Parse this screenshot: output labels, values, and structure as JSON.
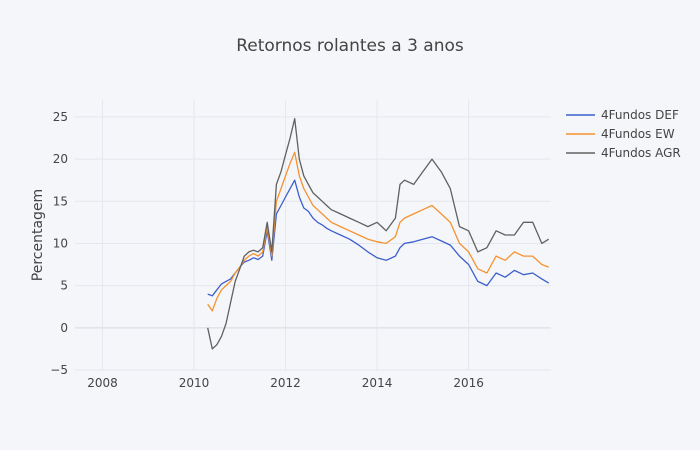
{
  "chart_data": {
    "type": "line",
    "title": "Retornos rolantes a 3 anos",
    "xlabel": "",
    "ylabel": "Percentagem",
    "xlim": [
      2007.4,
      2017.8
    ],
    "ylim": [
      -5,
      27
    ],
    "x_ticks": [
      2008,
      2010,
      2012,
      2014,
      2016
    ],
    "y_ticks": [
      -5,
      0,
      5,
      10,
      15,
      20,
      25
    ],
    "grid": true,
    "legend": "top-right",
    "x": [
      2010.3,
      2010.4,
      2010.5,
      2010.6,
      2010.7,
      2010.8,
      2010.9,
      2011.0,
      2011.1,
      2011.2,
      2011.3,
      2011.4,
      2011.5,
      2011.6,
      2011.7,
      2011.8,
      2011.9,
      2012.0,
      2012.1,
      2012.2,
      2012.3,
      2012.4,
      2012.5,
      2012.6,
      2012.7,
      2012.8,
      2012.9,
      2013.0,
      2013.2,
      2013.4,
      2013.6,
      2013.8,
      2014.0,
      2014.2,
      2014.4,
      2014.5,
      2014.6,
      2014.8,
      2015.0,
      2015.2,
      2015.4,
      2015.6,
      2015.8,
      2016.0,
      2016.2,
      2016.4,
      2016.6,
      2016.8,
      2017.0,
      2017.2,
      2017.4,
      2017.6,
      2017.75
    ],
    "series": [
      {
        "name": "4Fundos DEF",
        "color": "#3d5fcc",
        "values": [
          4.0,
          3.8,
          4.5,
          5.2,
          5.5,
          5.8,
          6.5,
          7.2,
          7.8,
          8.0,
          8.3,
          8.1,
          8.5,
          11.5,
          8.0,
          13.5,
          14.5,
          15.5,
          16.5,
          17.5,
          15.5,
          14.2,
          13.8,
          13.0,
          12.5,
          12.2,
          11.8,
          11.5,
          11.0,
          10.5,
          9.8,
          9.0,
          8.3,
          8.0,
          8.5,
          9.5,
          10.0,
          10.2,
          10.5,
          10.8,
          10.3,
          9.8,
          8.5,
          7.5,
          5.5,
          5.0,
          6.5,
          6.0,
          6.8,
          6.3,
          6.5,
          5.8,
          5.3
        ]
      },
      {
        "name": "4Fundos EW",
        "color": "#f5922f",
        "values": [
          2.8,
          2.0,
          3.5,
          4.5,
          5.0,
          5.5,
          6.5,
          7.2,
          8.0,
          8.5,
          8.8,
          8.5,
          9.0,
          12.0,
          8.5,
          15.0,
          16.5,
          18.0,
          19.5,
          20.8,
          18.0,
          16.5,
          15.5,
          14.5,
          14.0,
          13.5,
          13.0,
          12.5,
          12.0,
          11.5,
          11.0,
          10.5,
          10.2,
          10.0,
          10.8,
          12.5,
          13.0,
          13.5,
          14.0,
          14.5,
          13.5,
          12.5,
          10.0,
          9.0,
          7.0,
          6.5,
          8.5,
          8.0,
          9.0,
          8.5,
          8.5,
          7.5,
          7.2
        ]
      },
      {
        "name": "4Fundos AGR",
        "color": "#606060",
        "values": [
          0.0,
          -2.5,
          -2.0,
          -1.0,
          0.5,
          3.0,
          5.5,
          7.0,
          8.5,
          9.0,
          9.2,
          9.0,
          9.5,
          12.5,
          9.0,
          17.0,
          18.5,
          20.5,
          22.5,
          24.8,
          20.0,
          18.0,
          17.0,
          16.0,
          15.5,
          15.0,
          14.5,
          14.0,
          13.5,
          13.0,
          12.5,
          12.0,
          12.5,
          11.5,
          13.0,
          17.0,
          17.5,
          17.0,
          18.5,
          20.0,
          18.5,
          16.5,
          12.0,
          11.5,
          9.0,
          9.5,
          11.5,
          11.0,
          11.0,
          12.5,
          12.5,
          10.0,
          10.5
        ]
      }
    ]
  }
}
